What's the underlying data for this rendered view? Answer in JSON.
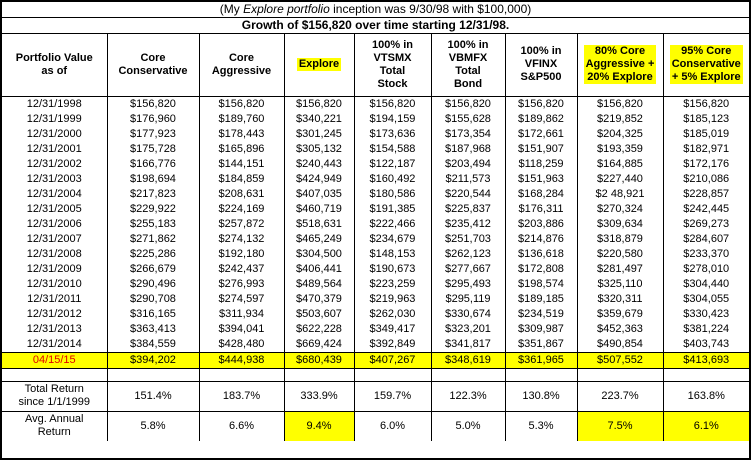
{
  "title": {
    "pre": "(My ",
    "italic": "Explore portfolio",
    "post": " inception was 9/30/98 with $100,000)"
  },
  "colors": {
    "highlight_yellow": "#FFFF00",
    "highlight_date_red": "#E00000",
    "border_black": "#000000"
  },
  "chart_data": {
    "type": "table",
    "title": "(My Explore portfolio inception was 9/30/98 with $100,000)",
    "subtitle": "Growth of $156,820 over time starting 12/31/98.",
    "corner_label": "Portfolio Value\nas of",
    "columns": [
      {
        "label": "Core\nConservative",
        "highlight": false
      },
      {
        "label": "Core\nAggressive",
        "highlight": false
      },
      {
        "label": "Explore",
        "highlight": true
      },
      {
        "label": "100% in\nVTSMX\nTotal\nStock",
        "highlight": false
      },
      {
        "label": "100% in\nVBMFX\nTotal\nBond",
        "highlight": false
      },
      {
        "label": "100% in\nVFINX\nS&P500",
        "highlight": false
      },
      {
        "label": "80% Core\nAggressive +\n20% Explore",
        "highlight": true
      },
      {
        "label": "95% Core\nConservative\n+ 5% Explore",
        "highlight": true
      }
    ],
    "rows": [
      {
        "date": "12/31/1998",
        "values": [
          "$156,820",
          "$156,820",
          "$156,820",
          "$156,820",
          "$156,820",
          "$156,820",
          "$156,820",
          "$156,820"
        ]
      },
      {
        "date": "12/31/1999",
        "values": [
          "$176,960",
          "$189,760",
          "$340,221",
          "$194,159",
          "$155,628",
          "$189,862",
          "$219,852",
          "$185,123"
        ]
      },
      {
        "date": "12/31/2000",
        "values": [
          "$177,923",
          "$178,443",
          "$301,245",
          "$173,636",
          "$173,354",
          "$172,661",
          "$204,325",
          "$185,019"
        ]
      },
      {
        "date": "12/31/2001",
        "values": [
          "$175,728",
          "$165,896",
          "$305,132",
          "$154,588",
          "$187,968",
          "$151,907",
          "$193,359",
          "$182,971"
        ]
      },
      {
        "date": "12/31/2002",
        "values": [
          "$166,776",
          "$144,151",
          "$240,443",
          "$122,187",
          "$203,494",
          "$118,259",
          "$164,885",
          "$172,176"
        ]
      },
      {
        "date": "12/31/2003",
        "values": [
          "$198,694",
          "$184,859",
          "$424,949",
          "$160,492",
          "$211,573",
          "$151,963",
          "$227,440",
          "$210,086"
        ]
      },
      {
        "date": "12/31/2004",
        "values": [
          "$217,823",
          "$208,631",
          "$407,035",
          "$180,586",
          "$220,544",
          "$168,284",
          "$2 48,921",
          "$228,857"
        ]
      },
      {
        "date": "12/31/2005",
        "values": [
          "$229,922",
          "$224,169",
          "$460,719",
          "$191,385",
          "$225,837",
          "$176,311",
          "$270,324",
          "$242,445"
        ]
      },
      {
        "date": "12/31/2006",
        "values": [
          "$255,183",
          "$257,872",
          "$518,631",
          "$222,466",
          "$235,412",
          "$203,886",
          "$309,634",
          "$269,273"
        ]
      },
      {
        "date": "12/31/2007",
        "values": [
          "$271,862",
          "$274,132",
          "$465,249",
          "$234,679",
          "$251,703",
          "$214,876",
          "$318,879",
          "$284,607"
        ]
      },
      {
        "date": "12/31/2008",
        "values": [
          "$225,286",
          "$192,180",
          "$304,500",
          "$148,153",
          "$262,123",
          "$136,618",
          "$220,580",
          "$233,370"
        ]
      },
      {
        "date": "12/31/2009",
        "values": [
          "$266,679",
          "$242,437",
          "$406,441",
          "$190,673",
          "$277,667",
          "$172,808",
          "$281,497",
          "$278,010"
        ]
      },
      {
        "date": "12/31/2010",
        "values": [
          "$290,496",
          "$276,993",
          "$489,564",
          "$223,259",
          "$295,493",
          "$198,574",
          "$325,110",
          "$304,440"
        ]
      },
      {
        "date": "12/31/2011",
        "values": [
          "$290,708",
          "$274,597",
          "$470,379",
          "$219,963",
          "$295,119",
          "$189,185",
          "$320,311",
          "$304,055"
        ]
      },
      {
        "date": "12/31/2012",
        "values": [
          "$316,165",
          "$311,934",
          "$503,607",
          "$262,030",
          "$330,674",
          "$234,519",
          "$359,679",
          "$330,423"
        ]
      },
      {
        "date": "12/31/2013",
        "values": [
          "$363,413",
          "$394,041",
          "$622,228",
          "$349,417",
          "$323,201",
          "$309,987",
          "$452,363",
          "$381,224"
        ]
      },
      {
        "date": "12/31/2014",
        "values": [
          "$384,559",
          "$428,480",
          "$669,424",
          "$392,849",
          "$341,817",
          "$351,867",
          "$490,854",
          "$403,743"
        ]
      }
    ],
    "highlight_row": {
      "date": "04/15/15",
      "values": [
        "$394,202",
        "$444,938",
        "$680,439",
        "$407,267",
        "$348,619",
        "$361,965",
        "$507,552",
        "$413,693"
      ]
    },
    "summary_rows": [
      {
        "label": "Total Return\nsince 1/1/1999",
        "values": [
          "151.4%",
          "183.7%",
          "333.9%",
          "159.7%",
          "122.3%",
          "130.8%",
          "223.7%",
          "163.8%"
        ],
        "highlight_indices": []
      },
      {
        "label": "Avg. Annual\nReturn",
        "values": [
          "5.8%",
          "6.6%",
          "9.4%",
          "6.0%",
          "5.0%",
          "5.3%",
          "7.5%",
          "6.1%"
        ],
        "highlight_indices": [
          2,
          6,
          7
        ]
      }
    ]
  }
}
